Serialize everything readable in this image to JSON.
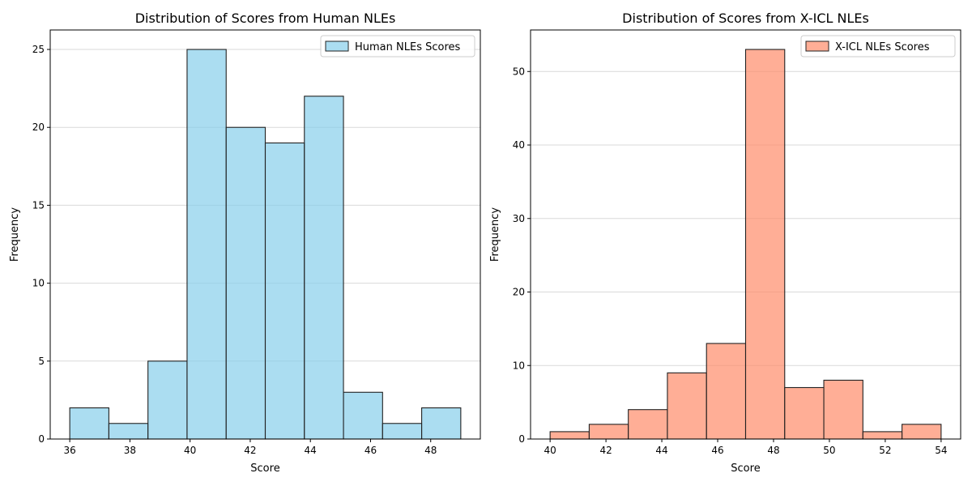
{
  "chart_data": [
    {
      "type": "bar",
      "title": "Distribution of Scores from Human NLEs",
      "xlabel": "Score",
      "ylabel": "Frequency",
      "xlim": [
        35.35,
        49.65
      ],
      "ylim": [
        0,
        26.25
      ],
      "x_ticks": [
        36,
        38,
        40,
        42,
        44,
        46,
        48
      ],
      "y_ticks": [
        0,
        5,
        10,
        15,
        20,
        25
      ],
      "bin_edges": [
        36.0,
        37.3,
        38.6,
        39.9,
        41.2,
        42.5,
        43.8,
        45.1,
        46.4,
        47.7,
        49.0
      ],
      "values": [
        2,
        1,
        5,
        25,
        20,
        19,
        22,
        3,
        1,
        2
      ],
      "series": [
        {
          "name": "Human NLEs Scores",
          "color": "#87ceeb"
        }
      ],
      "grid": "y",
      "legend": "top-right"
    },
    {
      "type": "bar",
      "title": "Distribution of Scores from X-ICL NLEs",
      "xlabel": "Score",
      "ylabel": "Frequency",
      "xlim": [
        39.3,
        54.7
      ],
      "ylim": [
        0,
        55.65
      ],
      "x_ticks": [
        40,
        42,
        44,
        46,
        48,
        50,
        52,
        54
      ],
      "y_ticks": [
        0,
        10,
        20,
        30,
        40,
        50
      ],
      "bin_edges": [
        40.0,
        41.4,
        42.8,
        44.2,
        45.6,
        47.0,
        48.4,
        49.8,
        51.2,
        52.6,
        54.0
      ],
      "values": [
        1,
        2,
        4,
        9,
        13,
        53,
        7,
        8,
        1,
        2
      ],
      "series": [
        {
          "name": "X-ICL NLEs Scores",
          "color": "#ff8c69"
        }
      ],
      "grid": "y",
      "legend": "top-right"
    }
  ]
}
